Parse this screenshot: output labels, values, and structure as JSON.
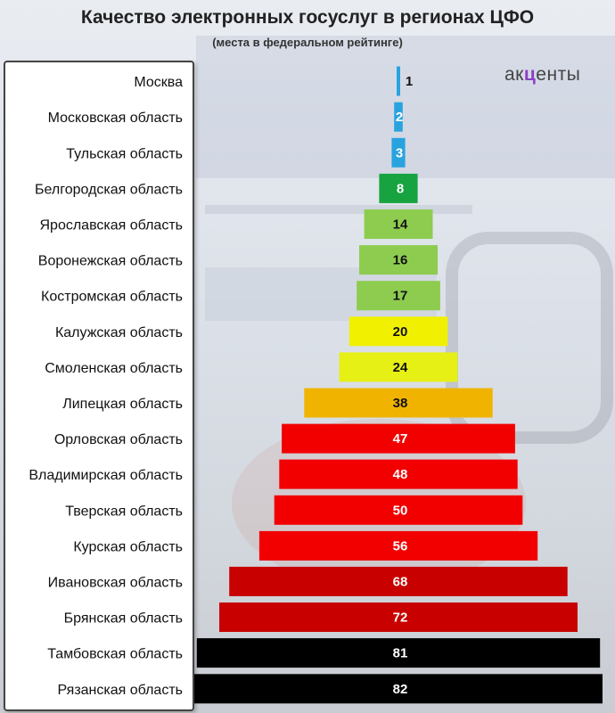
{
  "title": "Качество электронных госуслуг в регионах ЦФО",
  "subtitle": "(места в федеральном рейтинге)",
  "logo": {
    "part1": "ак",
    "mark": "ц",
    "part2": "енты"
  },
  "chart_data": {
    "type": "bar",
    "orientation": "horizontal-centered",
    "title": "Качество электронных госуслуг в регионах ЦФО",
    "subtitle": "(места в федеральном рейтинге)",
    "categories": [
      "Москва",
      "Московская область",
      "Тульская область",
      "Белгородская область",
      "Ярославская область",
      "Воронежская область",
      "Костромская область",
      "Калужская область",
      "Смоленская область",
      "Липецкая область",
      "Орловская область",
      "Владимирская область",
      "Тверская область",
      "Курская область",
      "Ивановская область",
      "Брянская область",
      "Тамбовская область",
      "Рязанская область"
    ],
    "values": [
      1,
      2,
      3,
      8,
      14,
      16,
      17,
      20,
      24,
      38,
      47,
      48,
      50,
      56,
      68,
      72,
      81,
      82
    ],
    "colors": [
      "#29a3e0",
      "#29a3e0",
      "#29a3e0",
      "#16a340",
      "#8dcc4f",
      "#8dcc4f",
      "#8dcc4f",
      "#f0f000",
      "#e6f015",
      "#f0b400",
      "#f20000",
      "#f20000",
      "#f20000",
      "#f20000",
      "#c80000",
      "#c80000",
      "#000000",
      "#000000"
    ],
    "label_colors": [
      "#ffffff",
      "#ffffff",
      "#ffffff",
      "#ffffff",
      "#111111",
      "#111111",
      "#111111",
      "#111111",
      "#111111",
      "#111111",
      "#ffffff",
      "#ffffff",
      "#ffffff",
      "#ffffff",
      "#ffffff",
      "#ffffff",
      "#ffffff",
      "#ffffff"
    ],
    "xlabel": "",
    "ylabel": "",
    "grid": false,
    "legend": "none"
  }
}
